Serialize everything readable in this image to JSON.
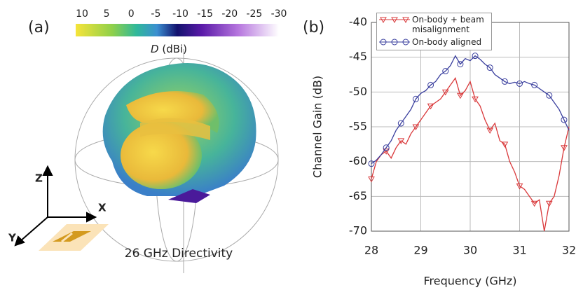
{
  "panel_a": {
    "label": "(a)",
    "colorbar_lim": [
      10,
      -30
    ],
    "colorbar_ticks": [
      10,
      5,
      0,
      -5,
      -10,
      -15,
      -20,
      -25,
      -30
    ],
    "colorbar_symbol": "D",
    "colorbar_unit": "(dBi)",
    "caption": "26 GHz Directivity",
    "axis_z": "Z",
    "axis_x": "X",
    "axis_y": "Y"
  },
  "chart_data": {
    "type": "line",
    "label": "(b)",
    "xlabel": "Frequency (GHz)",
    "ylabel": "Channel Gain (dB)",
    "x": [
      28.0,
      28.1,
      28.2,
      28.3,
      28.4,
      28.5,
      28.6,
      28.7,
      28.8,
      28.9,
      29.0,
      29.1,
      29.2,
      29.3,
      29.4,
      29.5,
      29.6,
      29.7,
      29.8,
      29.9,
      30.0,
      30.1,
      30.2,
      30.3,
      30.4,
      30.5,
      30.6,
      30.7,
      30.8,
      30.9,
      31.0,
      31.1,
      31.2,
      31.3,
      31.4,
      31.5,
      31.6,
      31.7,
      31.8,
      31.9,
      32.0
    ],
    "series": [
      {
        "name": "On-body + beam misalignment",
        "color": "#d9383a",
        "marker": "triangle",
        "values": [
          -62.5,
          -60,
          -59,
          -58.5,
          -59.5,
          -58,
          -57,
          -57.5,
          -56,
          -55,
          -54,
          -53,
          -52,
          -51.5,
          -51,
          -50,
          -49,
          -48,
          -50.5,
          -49.8,
          -48.5,
          -51,
          -52,
          -54,
          -55.5,
          -54.5,
          -57,
          -57.5,
          -60,
          -61.5,
          -63.5,
          -64,
          -65,
          -66,
          -65.5,
          -70,
          -66,
          -65,
          -62,
          -58,
          -55
        ]
      },
      {
        "name": "On-body aligned",
        "color": "#3a3f9e",
        "marker": "circle",
        "values": [
          -60.3,
          -59.8,
          -59,
          -58,
          -57,
          -55.5,
          -54.5,
          -53.5,
          -52.5,
          -51,
          -50.2,
          -49.8,
          -49,
          -48.5,
          -47.5,
          -47,
          -46.2,
          -44.8,
          -46,
          -45.2,
          -45.5,
          -44.8,
          -45.3,
          -46,
          -46.5,
          -47.5,
          -48,
          -48.5,
          -48.8,
          -48.6,
          -48.8,
          -48.5,
          -48.8,
          -49,
          -49.5,
          -50,
          -50.5,
          -51.5,
          -52.5,
          -54,
          -55.5
        ]
      }
    ],
    "xlim": [
      28,
      32
    ],
    "xticks": [
      28,
      29,
      30,
      31,
      32
    ],
    "ylim": [
      -70,
      -40
    ],
    "yticks": [
      -70,
      -65,
      -60,
      -55,
      -50,
      -45,
      -40
    ],
    "grid": true
  }
}
